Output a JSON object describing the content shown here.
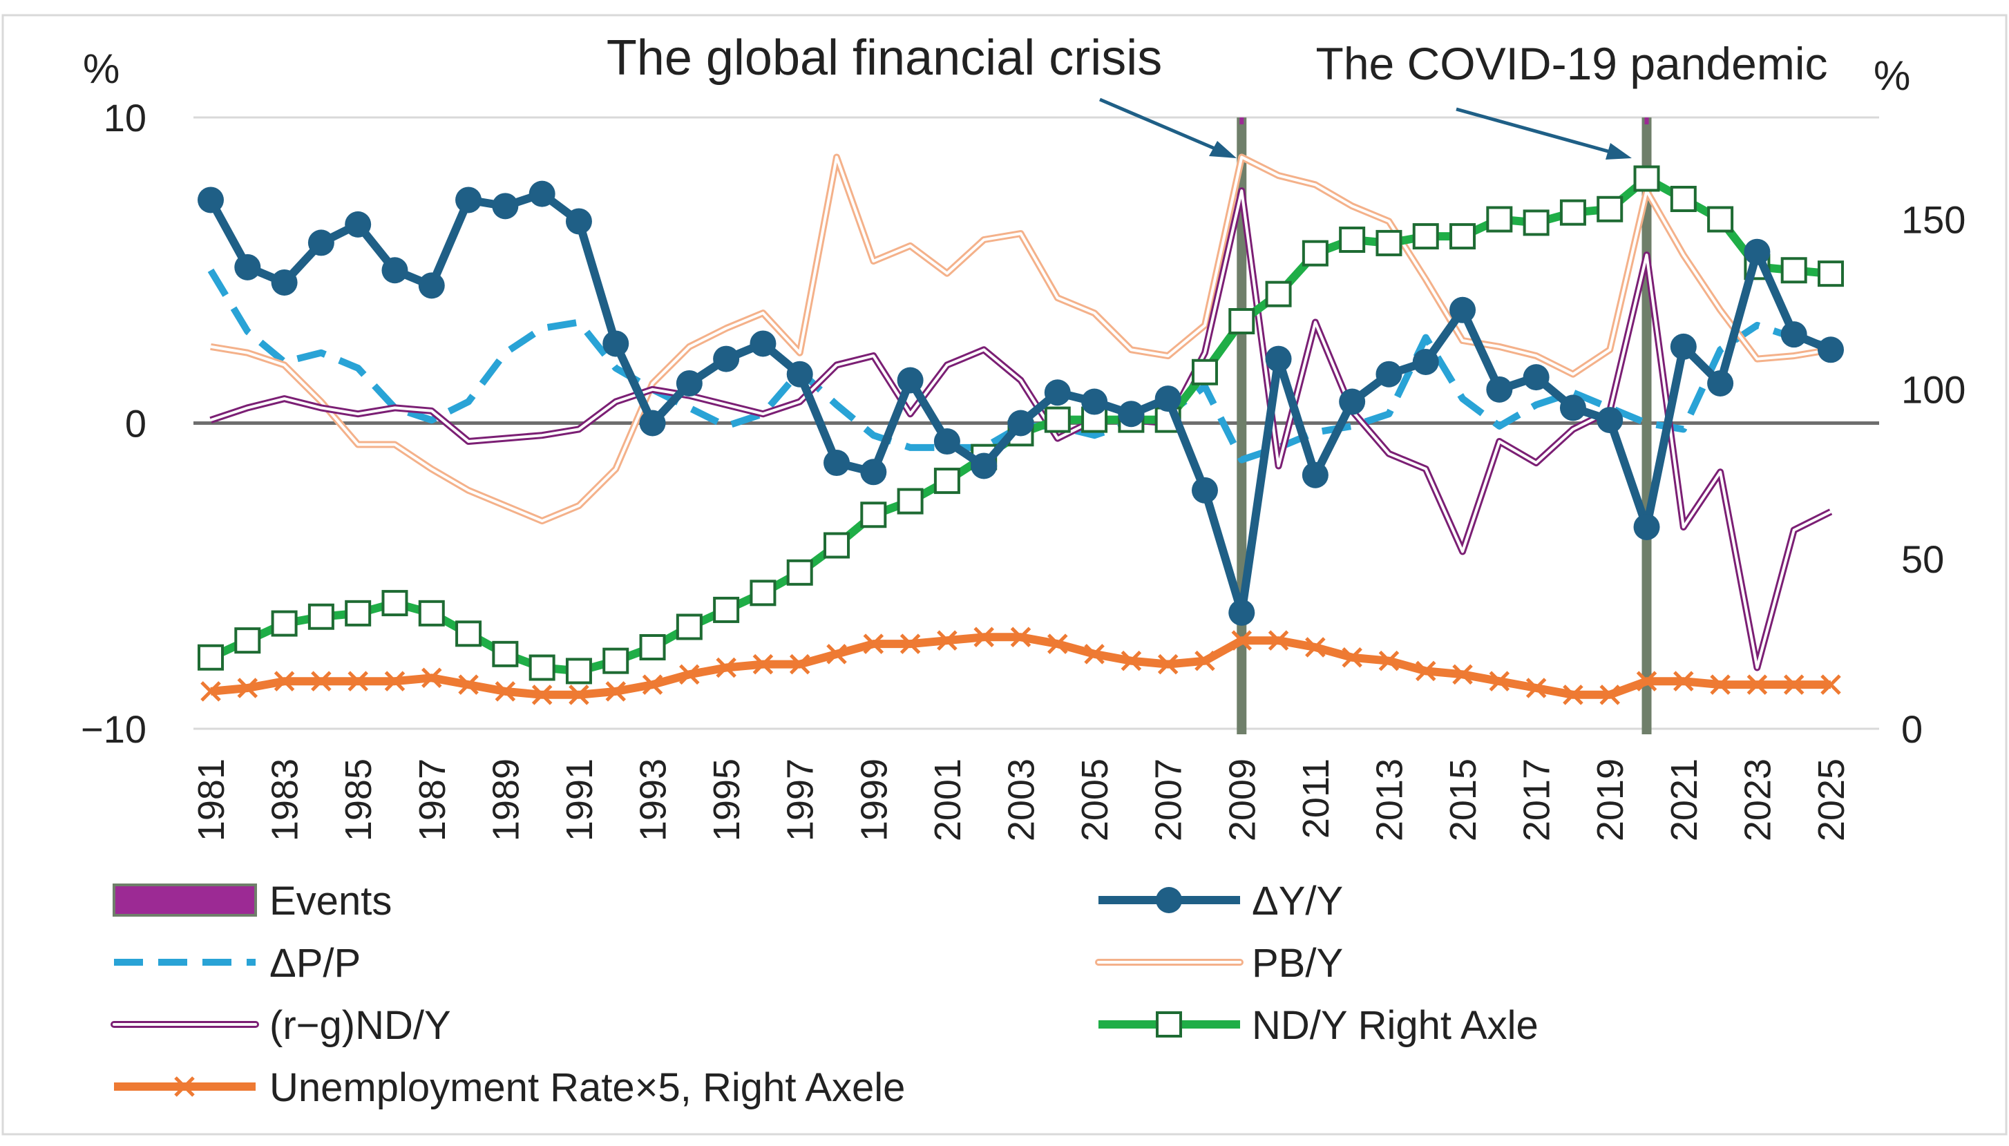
{
  "chart_data": {
    "type": "line",
    "title": "",
    "left_axis": {
      "unit_label": "%",
      "ylim": [
        -10,
        10
      ],
      "ticks": [
        "10",
        "0",
        "−10"
      ],
      "tick_values": [
        10,
        0,
        -10
      ]
    },
    "right_axis": {
      "unit_label": "%",
      "ylim": [
        0,
        180
      ],
      "ticks": [
        "0",
        "50",
        "100",
        "150"
      ],
      "tick_values": [
        0,
        50,
        100,
        150
      ]
    },
    "x": [
      1981,
      1982,
      1983,
      1984,
      1985,
      1986,
      1987,
      1988,
      1989,
      1990,
      1991,
      1992,
      1993,
      1994,
      1995,
      1996,
      1997,
      1998,
      1999,
      2000,
      2001,
      2002,
      2003,
      2004,
      2005,
      2006,
      2007,
      2008,
      2009,
      2010,
      2011,
      2012,
      2013,
      2014,
      2015,
      2016,
      2017,
      2018,
      2019,
      2020,
      2021,
      2022,
      2023,
      2024,
      2025
    ],
    "x_tick_labels": [
      "1981",
      "1983",
      "1985",
      "1987",
      "1989",
      "1991",
      "1993",
      "1995",
      "1997",
      "1999",
      "2001",
      "2003",
      "2005",
      "2007",
      "2009",
      "2011",
      "2013",
      "2015",
      "2017",
      "2019",
      "2021",
      "2023",
      "2025"
    ],
    "x_tick_values": [
      1981,
      1983,
      1985,
      1987,
      1989,
      1991,
      1993,
      1995,
      1997,
      1999,
      2001,
      2003,
      2005,
      2007,
      2009,
      2011,
      2013,
      2015,
      2017,
      2019,
      2021,
      2023,
      2025
    ],
    "events": [
      {
        "year": 2009,
        "label": "The global financial crisis"
      },
      {
        "year": 2020,
        "label": "The COVID-19 pandemic"
      }
    ],
    "series": [
      {
        "name": "ΔY/Y",
        "axis": "left",
        "style": "solid-markers-circle",
        "color": "#1f5f86",
        "values": [
          7.3,
          5.1,
          4.6,
          5.9,
          6.5,
          5.0,
          4.5,
          7.3,
          7.1,
          7.5,
          6.6,
          2.6,
          0.0,
          1.3,
          2.1,
          2.6,
          1.6,
          -1.3,
          -1.6,
          1.4,
          -0.6,
          -1.4,
          0.0,
          1.0,
          0.7,
          0.3,
          0.8,
          -2.2,
          -6.2,
          2.1,
          -1.7,
          0.7,
          1.6,
          2.0,
          3.7,
          1.1,
          1.5,
          0.5,
          0.1,
          -3.4,
          2.5,
          1.3,
          5.6,
          2.9,
          2.4
        ]
      },
      {
        "name": "ΔP/P",
        "axis": "left",
        "style": "dashed",
        "color": "#29a3d6",
        "values": [
          5.0,
          3.0,
          2.0,
          2.3,
          1.8,
          0.5,
          0.1,
          0.7,
          2.3,
          3.1,
          3.3,
          1.8,
          1.1,
          0.5,
          -0.1,
          0.3,
          1.7,
          0.6,
          -0.4,
          -0.8,
          -0.8,
          -0.8,
          -0.1,
          -0.1,
          -0.4,
          0.0,
          0.3,
          1.2,
          -1.2,
          -0.8,
          -0.3,
          -0.1,
          0.3,
          2.8,
          0.8,
          -0.1,
          0.6,
          1.0,
          0.5,
          0.0,
          -0.2,
          2.4,
          3.2,
          2.8,
          2.5
        ]
      },
      {
        "name": "PB/Y",
        "axis": "left",
        "style": "double",
        "color": "#f4b18a",
        "values": [
          2.5,
          2.3,
          1.9,
          0.7,
          -0.7,
          -0.7,
          -1.5,
          -2.2,
          -2.7,
          -3.2,
          -2.7,
          -1.5,
          1.3,
          2.5,
          3.1,
          3.6,
          2.3,
          8.7,
          5.3,
          5.8,
          4.9,
          6.0,
          6.2,
          4.1,
          3.6,
          2.4,
          2.2,
          3.2,
          8.7,
          8.1,
          7.8,
          7.1,
          6.6,
          4.7,
          2.7,
          2.5,
          2.2,
          1.6,
          2.4,
          7.6,
          5.5,
          3.7,
          2.1,
          2.2,
          2.4
        ]
      },
      {
        "name": "(r−g)ND/Y",
        "axis": "left",
        "style": "double",
        "color": "#7b1f74",
        "values": [
          0.1,
          0.5,
          0.8,
          0.5,
          0.3,
          0.5,
          0.4,
          -0.6,
          -0.5,
          -0.4,
          -0.2,
          0.7,
          1.1,
          0.9,
          0.6,
          0.3,
          0.7,
          1.9,
          2.2,
          0.3,
          1.9,
          2.4,
          1.4,
          -0.5,
          0.1,
          0.1,
          0.0,
          2.3,
          7.6,
          -1.4,
          3.3,
          0.4,
          -1.0,
          -1.5,
          -4.2,
          -0.6,
          -1.3,
          -0.2,
          0.4,
          5.5,
          -3.4,
          -1.6,
          -8.0,
          -3.5,
          -2.9
        ]
      },
      {
        "name": "ND/Y Right Axle",
        "axis": "right",
        "style": "solid-markers-square",
        "color": "#1fae47",
        "values": [
          21,
          26,
          31,
          33,
          34,
          37,
          34,
          28,
          22,
          18,
          17,
          20,
          24,
          30,
          35,
          40,
          46,
          54,
          63,
          67,
          73,
          80,
          87,
          91,
          91,
          91,
          91,
          105,
          120,
          128,
          140,
          144,
          143,
          145,
          145,
          150,
          149,
          152,
          153,
          162,
          156,
          150,
          136,
          135,
          134
        ]
      },
      {
        "name": "Unemployment Rate×5, Right Axele",
        "axis": "right",
        "style": "solid-markers-x",
        "color": "#ee7a33",
        "values": [
          11,
          12,
          14,
          14,
          14,
          14,
          15,
          13,
          11,
          10,
          10,
          11,
          13,
          16,
          18,
          19,
          19,
          22,
          25,
          25,
          26,
          27,
          27,
          25,
          22,
          20,
          19,
          20,
          26,
          26,
          24,
          21,
          20,
          17,
          16,
          14,
          12,
          10,
          10,
          14,
          14,
          13,
          13,
          13,
          13
        ]
      }
    ],
    "legend": [
      {
        "key": "events",
        "label": "Events"
      },
      {
        "key": "gdp",
        "label": "ΔY/Y"
      },
      {
        "key": "price",
        "label": "ΔP/P"
      },
      {
        "key": "pb",
        "label": "PB/Y"
      },
      {
        "key": "rg",
        "label": "(r−g)ND/Y"
      },
      {
        "key": "nd",
        "label": "ND/Y Right Axle"
      },
      {
        "key": "unemp",
        "label": "Unemployment Rate×5, Right Axele"
      }
    ],
    "legend_position": "bottom",
    "grid": "horizontal"
  }
}
